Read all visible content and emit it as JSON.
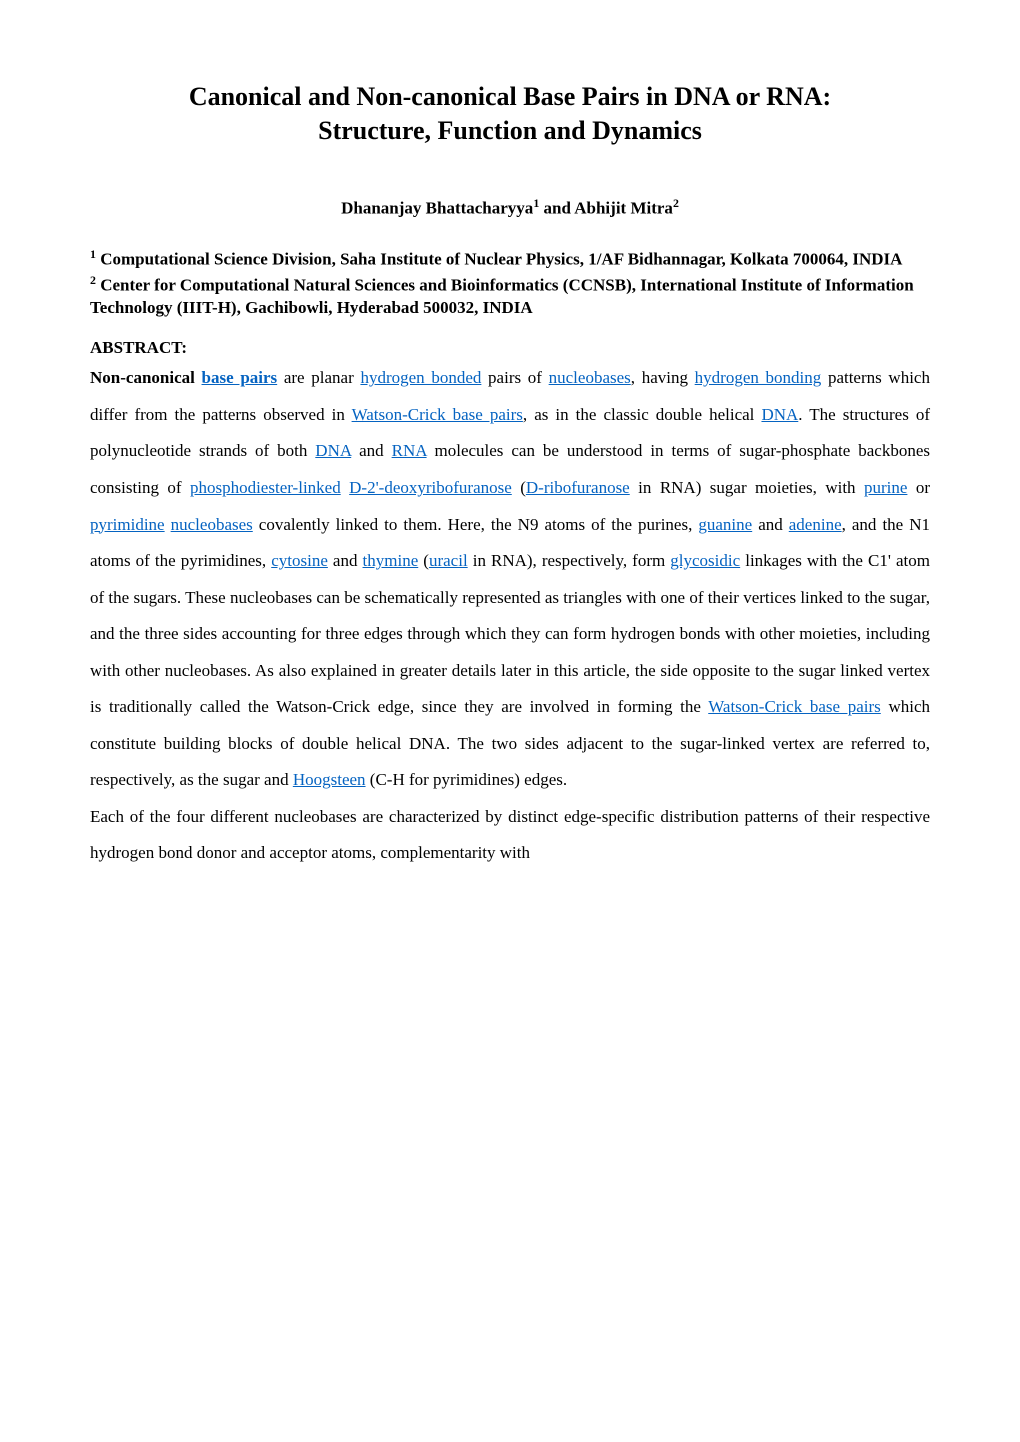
{
  "colors": {
    "background": "#ffffff",
    "text": "#000000",
    "link": "#0563c1"
  },
  "typography": {
    "font_family": "Times New Roman",
    "title_fontsize": 26,
    "body_fontsize": 17,
    "line_height_body": 2.15
  },
  "title": {
    "line1": "Canonical and Non-canonical Base Pairs in DNA or RNA:",
    "line2": "Structure, Function and Dynamics"
  },
  "authors": {
    "a1_name": "Dhananjay Bhattacharyya",
    "a1_sup": "1",
    "and": " and ",
    "a2_name": "Abhijit Mitra",
    "a2_sup": "2"
  },
  "affiliations": {
    "aff1_sup": "1",
    "aff1_text": " Computational Science Division, Saha Institute of Nuclear Physics, 1/AF Bidhannagar, Kolkata 700064, INDIA",
    "aff2_sup": "2",
    "aff2_text": " Center for Computational Natural Sciences and Bioinformatics (CCNSB), International Institute of Information Technology (IIIT-H), Gachibowli, Hyderabad 500032, INDIA"
  },
  "abstract": {
    "heading": "ABSTRACT:",
    "p1": {
      "t0": "Non-canonical ",
      "l1": "base pairs",
      "t1": " are planar ",
      "l2": "hydrogen bonded",
      "t2": " pairs of ",
      "l3": "nucleobases",
      "t3": ", having ",
      "l4": "hydrogen bonding",
      "t4": " patterns which differ from the patterns observed in ",
      "l5": "Watson-Crick base pairs",
      "t5": ", as in the classic double helical ",
      "l6": "DNA",
      "t6": ". The structures of polynucleotide strands of both ",
      "l7": "DNA",
      "t7": " and ",
      "l8": "RNA",
      "t8": " molecules can be understood in terms of sugar-phosphate backbones consisting of ",
      "l9": "phosphodiester-linked",
      "t9": " ",
      "l10": "D-2'-deoxyribofuranose",
      "t10": " (",
      "l11": "D-ribofuranose",
      "t11": " in RNA) sugar moieties, with ",
      "l12": "purine",
      "t12": " or ",
      "l13": "pyrimidine",
      "t13": " ",
      "l14": "nucleobases",
      "t14": " covalently linked to them. Here, the N9 atoms of the purines, ",
      "l15": "guanine",
      "t15": " and ",
      "l16": "adenine",
      "t16": ", and the N1 atoms of the pyrimidines, ",
      "l17": "cytosine",
      "t17": " and ",
      "l18": "thymine",
      "t18": " (",
      "l19": "uracil",
      "t19": " in RNA), respectively, form ",
      "l20": "glycosidic",
      "t20": " linkages with the C1' atom of the sugars. These nucleobases can be schematically represented as triangles with one of their vertices linked to the sugar, and the three sides accounting for three edges through which they can form hydrogen bonds with other moieties, including with other nucleobases. As also explained in greater details later in this article, the side opposite to the sugar linked vertex is traditionally called the Watson-Crick edge, since they are involved in forming the ",
      "l21": "Watson-Crick base pairs",
      "t21": " which constitute building blocks of double helical DNA. The two sides adjacent to the sugar-linked vertex are referred to, respectively, as the sugar and ",
      "l22": "Hoogsteen",
      "t22": " (C-H for pyrimidines) edges."
    },
    "p2": {
      "t0": "Each of the four different nucleobases are characterized by distinct edge-specific distribution patterns of their respective hydrogen bond donor and acceptor atoms, complementarity with"
    }
  }
}
